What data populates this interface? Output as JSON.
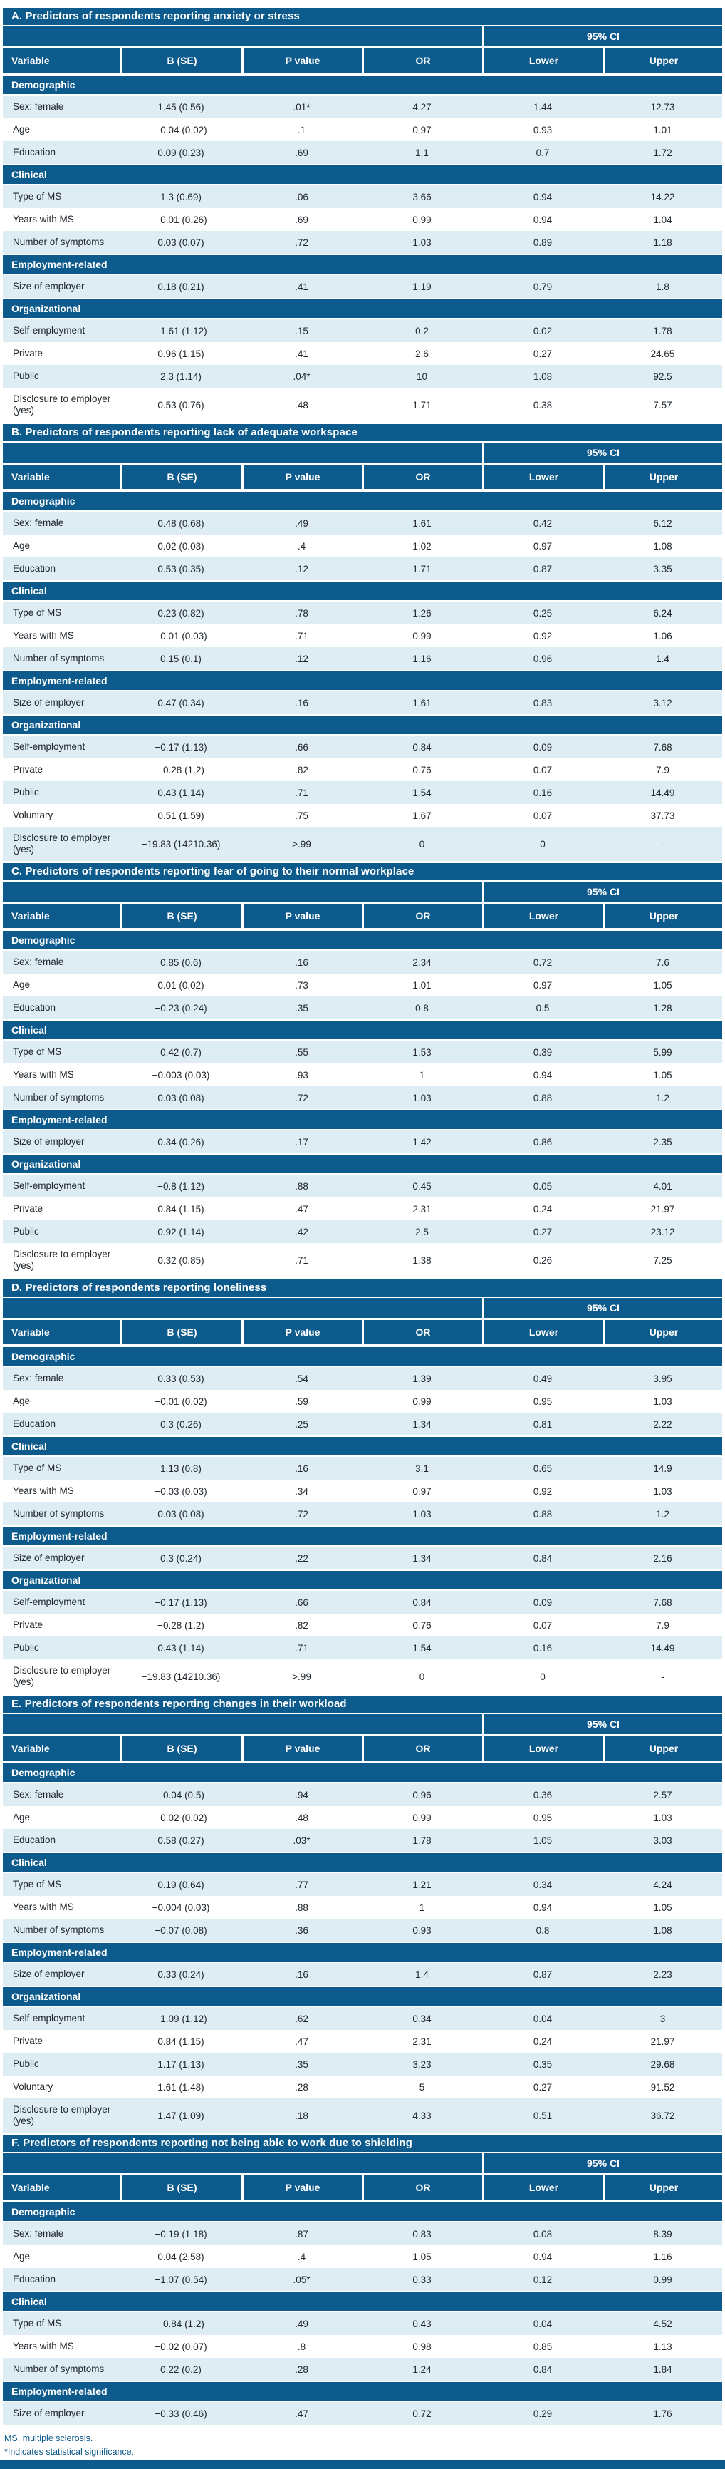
{
  "colors": {
    "primary_blue": "#0d5a8c",
    "row_light": "#ddedf3",
    "row_white": "#ffffff",
    "text_dark": "#21272c"
  },
  "ci_header": "95% CI",
  "columns": [
    "Variable",
    "B (SE)",
    "P value",
    "OR",
    "Lower",
    "Upper"
  ],
  "footnotes": {
    "abbrev": "MS, multiple sclerosis.",
    "significance": "*Indicates statistical significance."
  },
  "tables": [
    {
      "id": "A",
      "title": "A. Predictors of respondents reporting anxiety or stress",
      "groups": [
        {
          "label": "Demographic",
          "rows": [
            {
              "variable": "Sex: female",
              "b_se": "1.45 (0.56)",
              "p": ".01*",
              "or": "4.27",
              "lower": "1.44",
              "upper": "12.73"
            },
            {
              "variable": "Age",
              "b_se": "−0.04 (0.02)",
              "p": ".1",
              "or": "0.97",
              "lower": "0.93",
              "upper": "1.01"
            },
            {
              "variable": "Education",
              "b_se": "0.09 (0.23)",
              "p": ".69",
              "or": "1.1",
              "lower": "0.7",
              "upper": "1.72"
            }
          ]
        },
        {
          "label": "Clinical",
          "rows": [
            {
              "variable": "Type of MS",
              "b_se": "1.3 (0.69)",
              "p": ".06",
              "or": "3.66",
              "lower": "0.94",
              "upper": "14.22"
            },
            {
              "variable": "Years with MS",
              "b_se": "−0.01 (0.26)",
              "p": ".69",
              "or": "0.99",
              "lower": "0.94",
              "upper": "1.04"
            },
            {
              "variable": "Number of symptoms",
              "b_se": "0.03 (0.07)",
              "p": ".72",
              "or": "1.03",
              "lower": "0.89",
              "upper": "1.18"
            }
          ]
        },
        {
          "label": "Employment-related",
          "rows": [
            {
              "variable": "Size of employer",
              "b_se": "0.18 (0.21)",
              "p": ".41",
              "or": "1.19",
              "lower": "0.79",
              "upper": "1.8"
            }
          ]
        },
        {
          "label": "Organizational",
          "rows": [
            {
              "variable": "Self-employment",
              "b_se": "−1.61 (1.12)",
              "p": ".15",
              "or": "0.2",
              "lower": "0.02",
              "upper": "1.78"
            },
            {
              "variable": "Private",
              "b_se": "0.96 (1.15)",
              "p": ".41",
              "or": "2.6",
              "lower": "0.27",
              "upper": "24.65"
            },
            {
              "variable": "Public",
              "b_se": "2.3 (1.14)",
              "p": ".04*",
              "or": "10",
              "lower": "1.08",
              "upper": "92.5"
            },
            {
              "variable": "Disclosure to employer (yes)",
              "b_se": "0.53 (0.76)",
              "p": ".48",
              "or": "1.71",
              "lower": "0.38",
              "upper": "7.57",
              "tall": true
            }
          ]
        }
      ]
    },
    {
      "id": "B",
      "title": "B. Predictors of respondents reporting lack of adequate workspace",
      "groups": [
        {
          "label": "Demographic",
          "rows": [
            {
              "variable": "Sex: female",
              "b_se": "0.48 (0.68)",
              "p": ".49",
              "or": "1.61",
              "lower": "0.42",
              "upper": "6.12"
            },
            {
              "variable": "Age",
              "b_se": "0.02 (0.03)",
              "p": ".4",
              "or": "1.02",
              "lower": "0.97",
              "upper": "1.08"
            },
            {
              "variable": "Education",
              "b_se": "0.53 (0.35)",
              "p": ".12",
              "or": "1.71",
              "lower": "0.87",
              "upper": "3.35"
            }
          ]
        },
        {
          "label": "Clinical",
          "rows": [
            {
              "variable": "Type of MS",
              "b_se": "0.23 (0.82)",
              "p": ".78",
              "or": "1.26",
              "lower": "0.25",
              "upper": "6.24"
            },
            {
              "variable": "Years with MS",
              "b_se": "−0.01 (0.03)",
              "p": ".71",
              "or": "0.99",
              "lower": "0.92",
              "upper": "1.06"
            },
            {
              "variable": "Number of symptoms",
              "b_se": "0.15 (0.1)",
              "p": ".12",
              "or": "1.16",
              "lower": "0.96",
              "upper": "1.4"
            }
          ]
        },
        {
          "label": "Employment-related",
          "rows": [
            {
              "variable": "Size of employer",
              "b_se": "0.47 (0.34)",
              "p": ".16",
              "or": "1.61",
              "lower": "0.83",
              "upper": "3.12"
            }
          ]
        },
        {
          "label": "Organizational",
          "rows": [
            {
              "variable": "Self-employment",
              "b_se": "−0.17 (1.13)",
              "p": ".66",
              "or": "0.84",
              "lower": "0.09",
              "upper": "7.68"
            },
            {
              "variable": "Private",
              "b_se": "−0.28 (1.2)",
              "p": ".82",
              "or": "0.76",
              "lower": "0.07",
              "upper": "7.9"
            },
            {
              "variable": "Public",
              "b_se": "0.43 (1.14)",
              "p": ".71",
              "or": "1.54",
              "lower": "0.16",
              "upper": "14.49"
            },
            {
              "variable": "Voluntary",
              "b_se": "0.51 (1.59)",
              "p": ".75",
              "or": "1.67",
              "lower": "0.07",
              "upper": "37.73"
            },
            {
              "variable": "Disclosure to employer (yes)",
              "b_se": "−19.83 (14210.36)",
              "p": ">.99",
              "or": "0",
              "lower": "0",
              "upper": "-",
              "tall": true
            }
          ]
        }
      ]
    },
    {
      "id": "C",
      "title": "C. Predictors of respondents reporting fear of going to their normal workplace",
      "groups": [
        {
          "label": "Demographic",
          "rows": [
            {
              "variable": "Sex: female",
              "b_se": "0.85 (0.6)",
              "p": ".16",
              "or": "2.34",
              "lower": "0.72",
              "upper": "7.6"
            },
            {
              "variable": "Age",
              "b_se": "0.01 (0.02)",
              "p": ".73",
              "or": "1.01",
              "lower": "0.97",
              "upper": "1.05"
            },
            {
              "variable": "Education",
              "b_se": "−0.23 (0.24)",
              "p": ".35",
              "or": "0.8",
              "lower": "0.5",
              "upper": "1.28"
            }
          ]
        },
        {
          "label": "Clinical",
          "rows": [
            {
              "variable": "Type of MS",
              "b_se": "0.42 (0.7)",
              "p": ".55",
              "or": "1.53",
              "lower": "0.39",
              "upper": "5.99"
            },
            {
              "variable": "Years with MS",
              "b_se": "−0.003 (0.03)",
              "p": ".93",
              "or": "1",
              "lower": "0.94",
              "upper": "1.05"
            },
            {
              "variable": "Number of symptoms",
              "b_se": "0.03 (0.08)",
              "p": ".72",
              "or": "1.03",
              "lower": "0.88",
              "upper": "1.2"
            }
          ]
        },
        {
          "label": "Employment-related",
          "rows": [
            {
              "variable": "Size of employer",
              "b_se": "0.34 (0.26)",
              "p": ".17",
              "or": "1.42",
              "lower": "0.86",
              "upper": "2.35"
            }
          ]
        },
        {
          "label": "Organizational",
          "rows": [
            {
              "variable": "Self-employment",
              "b_se": "−0.8 (1.12)",
              "p": ".88",
              "or": "0.45",
              "lower": "0.05",
              "upper": "4.01"
            },
            {
              "variable": "Private",
              "b_se": "0.84 (1.15)",
              "p": ".47",
              "or": "2.31",
              "lower": "0.24",
              "upper": "21.97"
            },
            {
              "variable": "Public",
              "b_se": "0.92 (1.14)",
              "p": ".42",
              "or": "2.5",
              "lower": "0.27",
              "upper": "23.12"
            },
            {
              "variable": "Disclosure to employer (yes)",
              "b_se": "0.32 (0.85)",
              "p": ".71",
              "or": "1.38",
              "lower": "0.26",
              "upper": "7.25",
              "tall": true
            }
          ]
        }
      ]
    },
    {
      "id": "D",
      "title": "D. Predictors of respondents reporting loneliness",
      "groups": [
        {
          "label": "Demographic",
          "rows": [
            {
              "variable": "Sex: female",
              "b_se": "0.33 (0.53)",
              "p": ".54",
              "or": "1.39",
              "lower": "0.49",
              "upper": "3.95"
            },
            {
              "variable": "Age",
              "b_se": "−0.01 (0.02)",
              "p": ".59",
              "or": "0.99",
              "lower": "0.95",
              "upper": "1.03"
            },
            {
              "variable": "Education",
              "b_se": "0.3 (0.26)",
              "p": ".25",
              "or": "1.34",
              "lower": "0.81",
              "upper": "2.22"
            }
          ]
        },
        {
          "label": "Clinical",
          "rows": [
            {
              "variable": "Type of MS",
              "b_se": "1.13 (0.8)",
              "p": ".16",
              "or": "3.1",
              "lower": "0.65",
              "upper": "14.9"
            },
            {
              "variable": "Years with MS",
              "b_se": "−0.03 (0.03)",
              "p": ".34",
              "or": "0.97",
              "lower": "0.92",
              "upper": "1.03"
            },
            {
              "variable": "Number of symptoms",
              "b_se": "0.03 (0.08)",
              "p": ".72",
              "or": "1.03",
              "lower": "0.88",
              "upper": "1.2"
            }
          ]
        },
        {
          "label": "Employment-related",
          "rows": [
            {
              "variable": "Size of employer",
              "b_se": "0.3 (0.24)",
              "p": ".22",
              "or": "1.34",
              "lower": "0.84",
              "upper": "2.16"
            }
          ]
        },
        {
          "label": "Organizational",
          "rows": [
            {
              "variable": "Self-employment",
              "b_se": "−0.17 (1.13)",
              "p": ".66",
              "or": "0.84",
              "lower": "0.09",
              "upper": "7.68"
            },
            {
              "variable": "Private",
              "b_se": "−0.28 (1.2)",
              "p": ".82",
              "or": "0.76",
              "lower": "0.07",
              "upper": "7.9"
            },
            {
              "variable": "Public",
              "b_se": "0.43 (1.14)",
              "p": ".71",
              "or": "1.54",
              "lower": "0.16",
              "upper": "14.49"
            },
            {
              "variable": "Disclosure to employer (yes)",
              "b_se": "−19.83 (14210.36)",
              "p": ">.99",
              "or": "0",
              "lower": "0",
              "upper": "-",
              "tall": true
            }
          ]
        }
      ]
    },
    {
      "id": "E",
      "title": "E. Predictors of respondents reporting changes in their workload",
      "groups": [
        {
          "label": "Demographic",
          "rows": [
            {
              "variable": "Sex: female",
              "b_se": "−0.04 (0.5)",
              "p": ".94",
              "or": "0.96",
              "lower": "0.36",
              "upper": "2.57"
            },
            {
              "variable": "Age",
              "b_se": "−0.02 (0.02)",
              "p": ".48",
              "or": "0.99",
              "lower": "0.95",
              "upper": "1.03"
            },
            {
              "variable": "Education",
              "b_se": "0.58 (0.27)",
              "p": ".03*",
              "or": "1.78",
              "lower": "1.05",
              "upper": "3.03"
            }
          ]
        },
        {
          "label": "Clinical",
          "rows": [
            {
              "variable": "Type of MS",
              "b_se": "0.19 (0.64)",
              "p": ".77",
              "or": "1.21",
              "lower": "0.34",
              "upper": "4.24"
            },
            {
              "variable": "Years with MS",
              "b_se": "−0.004 (0.03)",
              "p": ".88",
              "or": "1",
              "lower": "0.94",
              "upper": "1.05"
            },
            {
              "variable": "Number of symptoms",
              "b_se": "−0.07 (0.08)",
              "p": ".36",
              "or": "0.93",
              "lower": "0.8",
              "upper": "1.08"
            }
          ]
        },
        {
          "label": "Employment-related",
          "rows": [
            {
              "variable": "Size of employer",
              "b_se": "0.33 (0.24)",
              "p": ".16",
              "or": "1.4",
              "lower": "0.87",
              "upper": "2.23"
            }
          ]
        },
        {
          "label": "Organizational",
          "rows": [
            {
              "variable": "Self-employment",
              "b_se": "−1.09 (1.12)",
              "p": ".62",
              "or": "0.34",
              "lower": "0.04",
              "upper": "3"
            },
            {
              "variable": "Private",
              "b_se": "0.84 (1.15)",
              "p": ".47",
              "or": "2.31",
              "lower": "0.24",
              "upper": "21.97"
            },
            {
              "variable": "Public",
              "b_se": "1.17 (1.13)",
              "p": ".35",
              "or": "3.23",
              "lower": "0.35",
              "upper": "29.68"
            },
            {
              "variable": "Voluntary",
              "b_se": "1.61 (1.48)",
              "p": ".28",
              "or": "5",
              "lower": "0.27",
              "upper": "91.52"
            },
            {
              "variable": "Disclosure to employer (yes)",
              "b_se": "1.47 (1.09)",
              "p": ".18",
              "or": "4.33",
              "lower": "0.51",
              "upper": "36.72",
              "tall": true
            }
          ]
        }
      ]
    },
    {
      "id": "F",
      "title": "F. Predictors of respondents reporting not being able to work due to shielding",
      "groups": [
        {
          "label": "Demographic",
          "rows": [
            {
              "variable": "Sex: female",
              "b_se": "−0.19 (1.18)",
              "p": ".87",
              "or": "0.83",
              "lower": "0.08",
              "upper": "8.39"
            },
            {
              "variable": "Age",
              "b_se": "0.04 (2.58)",
              "p": ".4",
              "or": "1.05",
              "lower": "0.94",
              "upper": "1.16"
            },
            {
              "variable": "Education",
              "b_se": "−1.07 (0.54)",
              "p": ".05*",
              "or": "0.33",
              "lower": "0.12",
              "upper": "0.99"
            }
          ]
        },
        {
          "label": "Clinical",
          "rows": [
            {
              "variable": "Type of MS",
              "b_se": "−0.84 (1.2)",
              "p": ".49",
              "or": "0.43",
              "lower": "0.04",
              "upper": "4.52"
            },
            {
              "variable": "Years with MS",
              "b_se": "−0.02 (0.07)",
              "p": ".8",
              "or": "0.98",
              "lower": "0.85",
              "upper": "1.13"
            },
            {
              "variable": "Number of symptoms",
              "b_se": "0.22 (0.2)",
              "p": ".28",
              "or": "1.24",
              "lower": "0.84",
              "upper": "1.84"
            }
          ]
        },
        {
          "label": "Employment-related",
          "rows": [
            {
              "variable": "Size of employer",
              "b_se": "−0.33 (0.46)",
              "p": ".47",
              "or": "0.72",
              "lower": "0.29",
              "upper": "1.76"
            }
          ]
        }
      ]
    }
  ]
}
